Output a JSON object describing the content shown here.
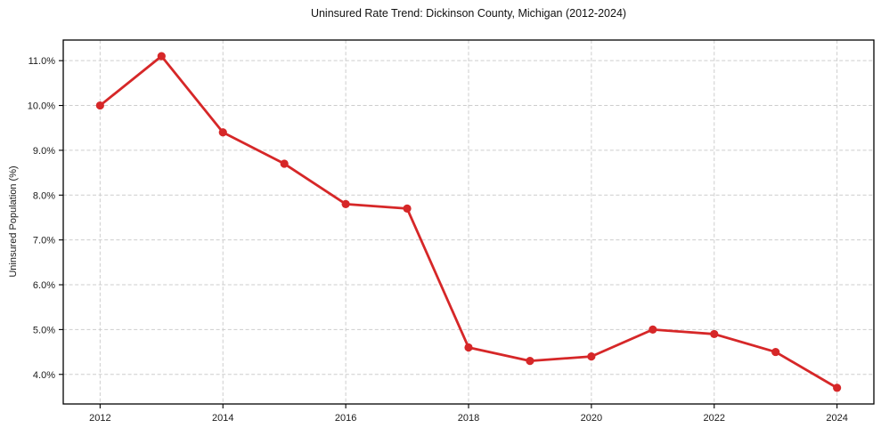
{
  "figure": {
    "background": "#ffffff"
  },
  "chart_data": {
    "type": "line",
    "title": "Uninsured Rate Trend: Dickinson County, Michigan (2012-2024)",
    "xlabel": "",
    "ylabel": "Uninsured Population (%)",
    "x": [
      2012,
      2013,
      2014,
      2015,
      2016,
      2017,
      2018,
      2019,
      2020,
      2021,
      2022,
      2023,
      2024
    ],
    "series": [
      {
        "values": [
          10.0,
          11.1,
          9.4,
          8.7,
          7.8,
          7.7,
          4.6,
          4.3,
          4.4,
          5.0,
          4.9,
          4.5,
          3.7
        ],
        "color": "#d62728"
      }
    ],
    "xlim": [
      2011.4,
      2024.6
    ],
    "ylim": [
      3.34,
      11.46
    ],
    "xticks": {
      "values": [
        2012,
        2014,
        2016,
        2018,
        2020,
        2022,
        2024
      ],
      "labels": [
        "2012",
        "2014",
        "2016",
        "2018",
        "2020",
        "2022",
        "2024"
      ]
    },
    "yticks": {
      "values": [
        4,
        5,
        6,
        7,
        8,
        9,
        10,
        11
      ],
      "labels": [
        "4.0%",
        "5.0%",
        "6.0%",
        "7.0%",
        "8.0%",
        "9.0%",
        "10.0%",
        "11.0%"
      ]
    },
    "grid": true,
    "grid_style": "dashed",
    "grid_color": "#cdcdcd",
    "line_color": "#d62728",
    "marker": "circle",
    "legend": false
  }
}
